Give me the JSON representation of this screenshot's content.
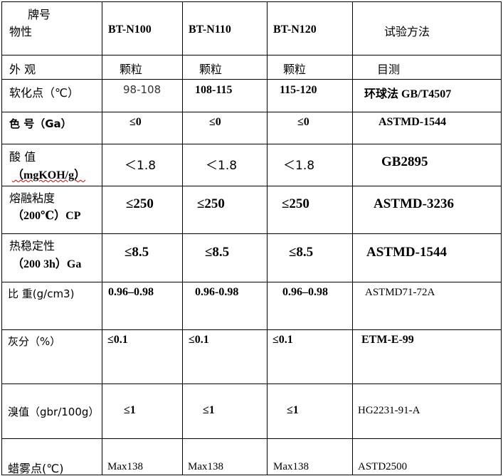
{
  "header": {
    "corner_top": "牌号",
    "corner_bottom": "物性",
    "grades": [
      "BT-N100",
      "BT-N110",
      "BT-N120"
    ],
    "method": "试验方法"
  },
  "rows": [
    {
      "label": [
        "外  观"
      ],
      "values": [
        "颗粒",
        "颗粒",
        "颗粒"
      ],
      "method": "目测"
    },
    {
      "label": [
        "软化点（℃）"
      ],
      "values": [
        "98-108",
        "108-115",
        "115-120"
      ],
      "method": "环球法 GB/T4507"
    },
    {
      "label": [
        "色  号（Ga）"
      ],
      "values": [
        "≤0",
        "≤0",
        "≤0"
      ],
      "method": "ASTMD-1544"
    },
    {
      "label": [
        "酸  值",
        "（mgKOH/g）"
      ],
      "values": [
        "＜1.8",
        "＜1.8",
        "＜1.8"
      ],
      "method": "GB2895"
    },
    {
      "label": [
        "熔融粘度",
        "（200℃）CP"
      ],
      "values": [
        "≤250",
        "≤250",
        "≤250"
      ],
      "method": "ASTMD-3236"
    },
    {
      "label": [
        "热稳定性",
        "（200 3h）Ga"
      ],
      "values": [
        "≤8.5",
        "≤8.5",
        "≤8.5"
      ],
      "method": "ASTMD-1544"
    },
    {
      "label": [
        "比  重(g/cm3)"
      ],
      "values": [
        "0.96–0.98",
        "0.96-0.98",
        "0.96–0.98"
      ],
      "method": "ASTMD71-72A"
    },
    {
      "label": [
        "灰分（%）"
      ],
      "values": [
        "≤0.1",
        "≤0.1",
        "≤0.1"
      ],
      "method": "ETM-E-99"
    },
    {
      "label": [
        "溴值（gbr/100g）"
      ],
      "values": [
        "≤1",
        "≤1",
        "≤1"
      ],
      "method": "HG2231-91-A"
    },
    {
      "label": [
        "蜡雾点(℃)"
      ],
      "values": [
        "Max138",
        "Max138",
        "Max138"
      ],
      "method": "ASTD2500"
    }
  ]
}
